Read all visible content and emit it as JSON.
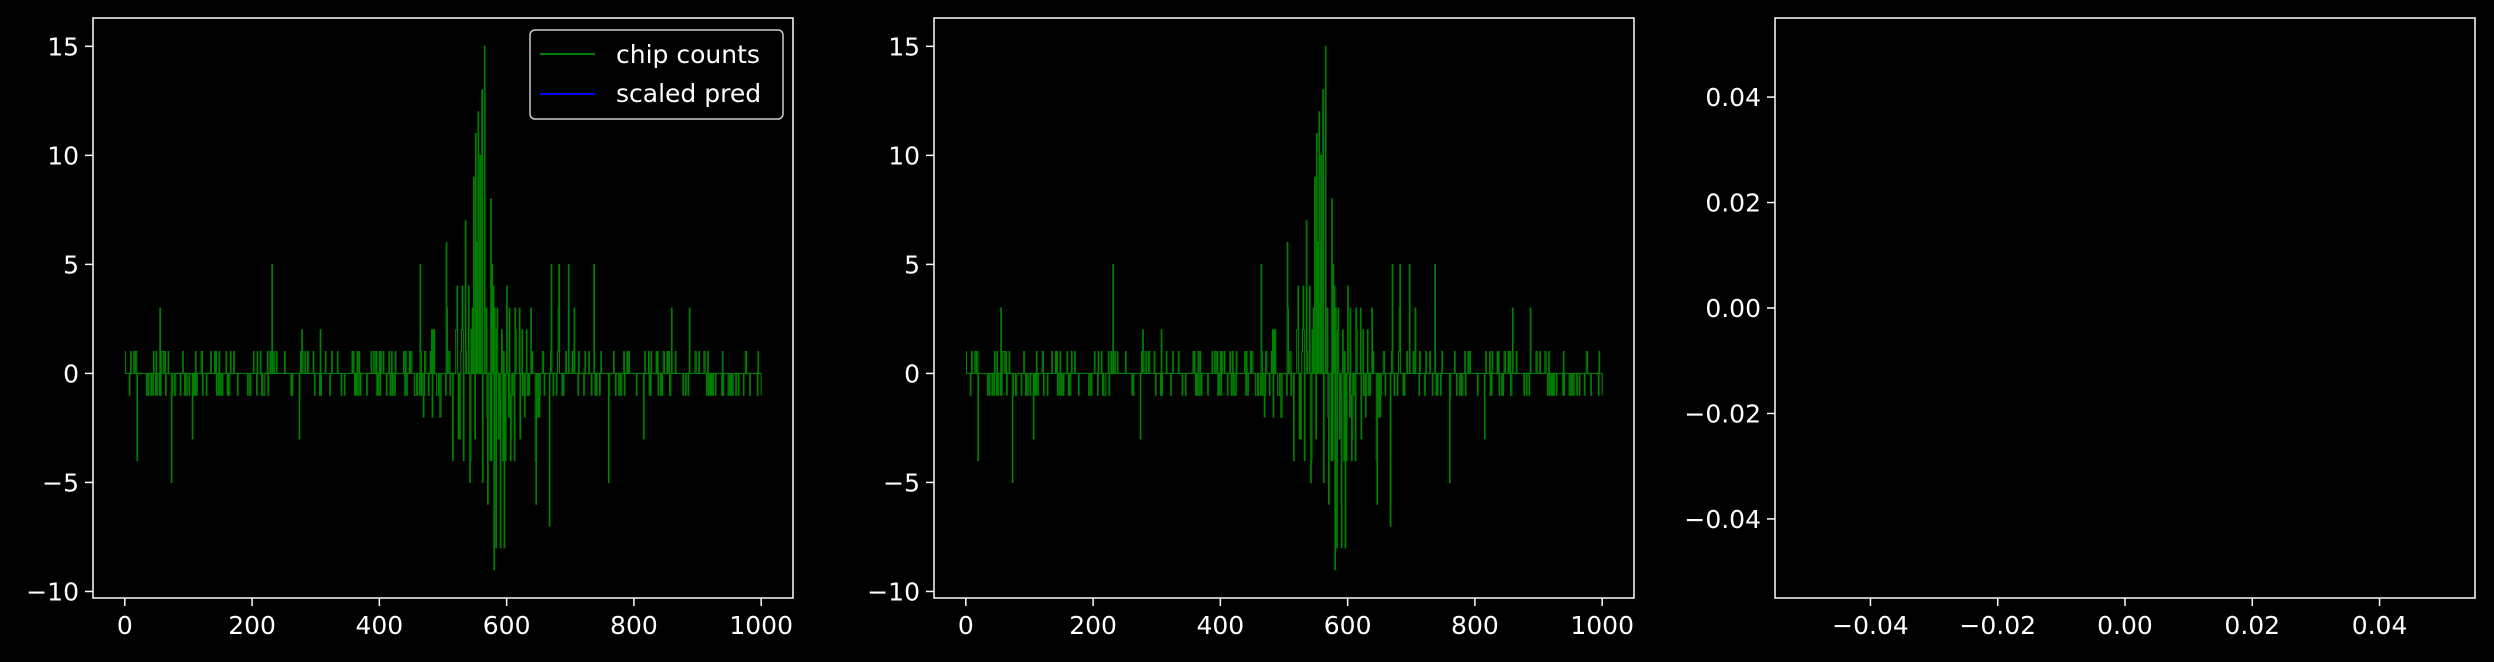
{
  "figure": {
    "background": "#000000",
    "foreground": "#ffffff",
    "series_colors": {
      "chip counts": "#008000",
      "scaled pred": "#0000ff"
    }
  },
  "chart_data": [
    {
      "type": "line",
      "drawstyle": "steps",
      "x_range": [
        0,
        1000
      ],
      "ylim": [
        -10,
        16
      ],
      "xticks": [
        0,
        200,
        400,
        600,
        800,
        1000
      ],
      "yticks": [
        -10,
        -5,
        0,
        5,
        10,
        15
      ],
      "xtick_labels": [
        "0",
        "200",
        "400",
        "600",
        "800",
        "1000"
      ],
      "ytick_labels": [
        "−10",
        "−5",
        "0",
        "5",
        "10",
        "15"
      ],
      "legend": {
        "position": "top-right",
        "entries": [
          "chip counts",
          "scaled pred"
        ]
      },
      "series": [
        {
          "name": "chip counts",
          "color": "#008000",
          "shape": "noisy step signal, ~±1 near edges, growing to peak 15 near x≈565, minimum −9 near x≈580"
        },
        {
          "name": "scaled pred",
          "color": "#0000ff",
          "values": []
        }
      ]
    },
    {
      "type": "line",
      "drawstyle": "steps",
      "x_range": [
        0,
        1000
      ],
      "ylim": [
        -10,
        16
      ],
      "xticks": [
        0,
        200,
        400,
        600,
        800,
        1000
      ],
      "yticks": [
        -10,
        -5,
        0,
        5,
        10,
        15
      ],
      "xtick_labels": [
        "0",
        "200",
        "400",
        "600",
        "800",
        "1000"
      ],
      "ytick_labels": [
        "−10",
        "−5",
        "0",
        "5",
        "10",
        "15"
      ],
      "series": [
        {
          "color": "#008000",
          "shape": "same as left panel"
        }
      ]
    },
    {
      "type": "line",
      "xlim": [
        -0.055,
        0.055
      ],
      "ylim": [
        -0.055,
        0.055
      ],
      "xticks": [
        -0.04,
        -0.02,
        0.0,
        0.02,
        0.04
      ],
      "yticks": [
        -0.04,
        -0.02,
        0.0,
        0.02,
        0.04
      ],
      "xtick_labels": [
        "−0.04",
        "−0.02",
        "0.00",
        "0.02",
        "0.04"
      ],
      "ytick_labels": [
        "−0.04",
        "−0.02",
        "0.00",
        "0.02",
        "0.04"
      ],
      "series": []
    }
  ]
}
